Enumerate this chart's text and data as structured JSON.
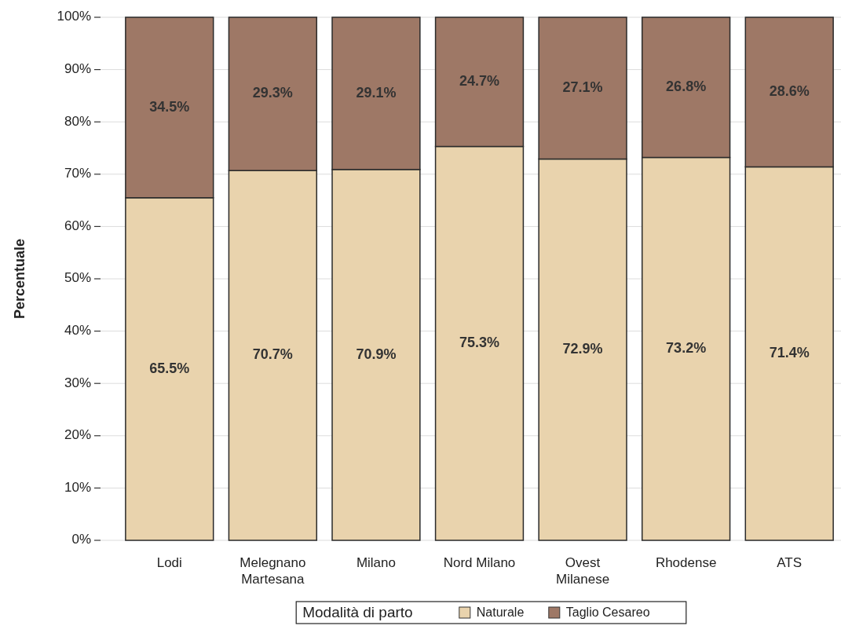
{
  "chart_data": {
    "type": "bar",
    "stacked": true,
    "ylabel": "Percentuale",
    "legend_title": "Modalità di parto",
    "legend": "bottom",
    "grid": "y",
    "categories": [
      "Lodi",
      "Melegnano\nMartesana",
      "Milano",
      "Nord Milano",
      "Ovest\nMilanese",
      "Rhodense",
      "ATS"
    ],
    "ylim": [
      0,
      100
    ],
    "yticks": [
      {
        "value": 0,
        "label": "0%"
      },
      {
        "value": 10,
        "label": "10%"
      },
      {
        "value": 20,
        "label": "20%"
      },
      {
        "value": 30,
        "label": "30%"
      },
      {
        "value": 40,
        "label": "40%"
      },
      {
        "value": 50,
        "label": "50%"
      },
      {
        "value": 60,
        "label": "60%"
      },
      {
        "value": 70,
        "label": "70%"
      },
      {
        "value": 80,
        "label": "80%"
      },
      {
        "value": 90,
        "label": "90%"
      },
      {
        "value": 100,
        "label": "100%"
      }
    ],
    "series": [
      {
        "name": "Naturale",
        "color": "#e9d3ad",
        "values": [
          65.5,
          70.7,
          70.9,
          75.3,
          72.9,
          73.2,
          71.4
        ],
        "value_labels": [
          "65.5%",
          "70.7%",
          "70.9%",
          "75.3%",
          "72.9%",
          "73.2%",
          "71.4%"
        ]
      },
      {
        "name": "Taglio Cesareo",
        "color": "#9e7866",
        "values": [
          34.5,
          29.3,
          29.1,
          24.7,
          27.1,
          26.8,
          28.6
        ],
        "value_labels": [
          "34.5%",
          "29.3%",
          "29.1%",
          "24.7%",
          "27.1%",
          "26.8%",
          "28.6%"
        ]
      }
    ]
  }
}
